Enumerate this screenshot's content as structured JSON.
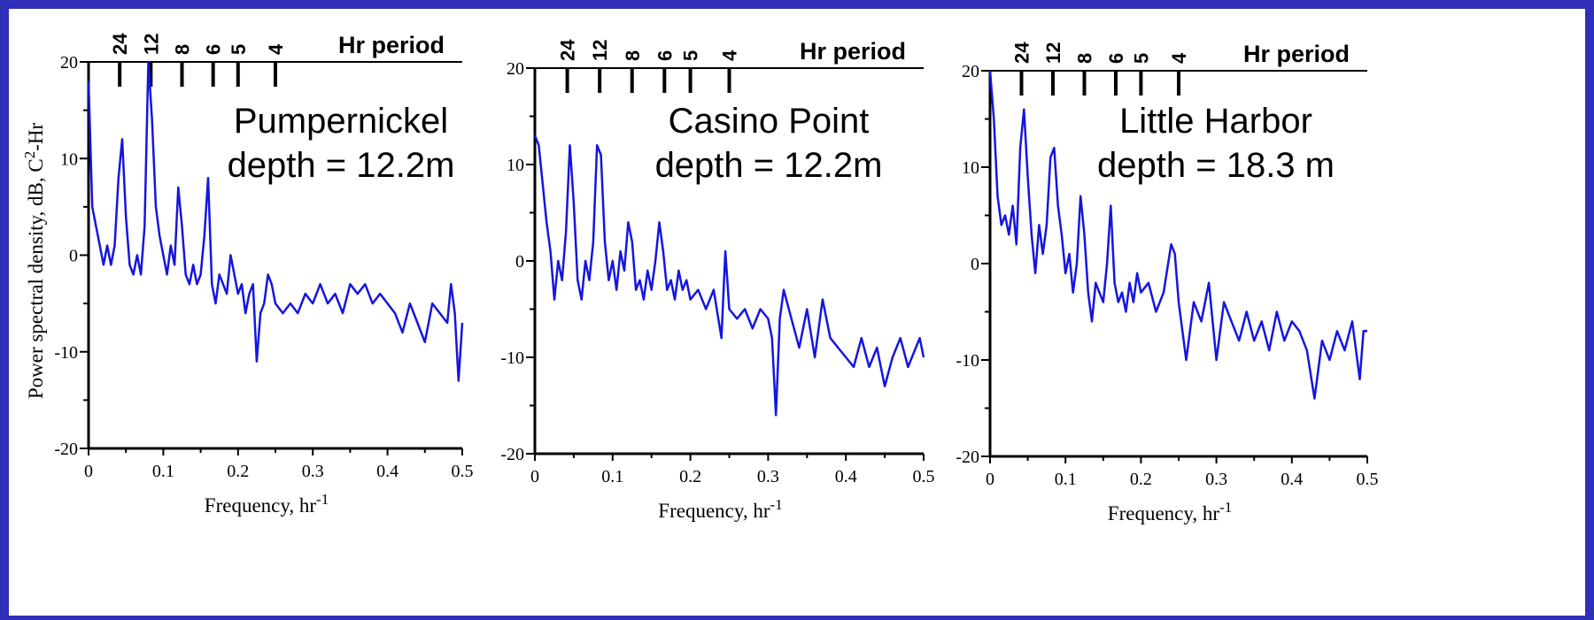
{
  "y_axis_label_main": "Power spectral density, dB, C",
  "y_axis_label_sup": "2",
  "y_axis_label_tail": "-Hr",
  "period_label": "Hr period",
  "period_ticks": [
    {
      "label": "24",
      "freq": 0.04167
    },
    {
      "label": "12",
      "freq": 0.08333
    },
    {
      "label": "8",
      "freq": 0.125
    },
    {
      "label": "6",
      "freq": 0.16667
    },
    {
      "label": "5",
      "freq": 0.2
    },
    {
      "label": "4",
      "freq": 0.25
    }
  ],
  "x_tick_labels": [
    "0",
    "0.1",
    "0.2",
    "0.3",
    "0.4",
    "0.5"
  ],
  "y_tick_labels": [
    "-20",
    "-10",
    "0",
    "10",
    "20"
  ],
  "line_color": "#1515e0",
  "chart_data": [
    {
      "type": "line",
      "title_line1": "Pumpernickel",
      "title_line2": "depth = 12.2m",
      "xlabel": "Frequency, hr",
      "xlabel_sup": "-1",
      "xlim": [
        0,
        0.5
      ],
      "ylim": [
        -20,
        20
      ],
      "x": [
        0,
        0.005,
        0.01,
        0.015,
        0.02,
        0.025,
        0.03,
        0.035,
        0.04,
        0.045,
        0.05,
        0.055,
        0.06,
        0.065,
        0.07,
        0.075,
        0.08,
        0.085,
        0.09,
        0.095,
        0.1,
        0.105,
        0.11,
        0.115,
        0.12,
        0.125,
        0.13,
        0.135,
        0.14,
        0.145,
        0.15,
        0.155,
        0.16,
        0.165,
        0.17,
        0.175,
        0.18,
        0.185,
        0.19,
        0.195,
        0.2,
        0.205,
        0.21,
        0.215,
        0.22,
        0.225,
        0.23,
        0.235,
        0.24,
        0.245,
        0.25,
        0.26,
        0.27,
        0.28,
        0.29,
        0.3,
        0.31,
        0.32,
        0.33,
        0.34,
        0.35,
        0.36,
        0.37,
        0.38,
        0.39,
        0.4,
        0.41,
        0.42,
        0.43,
        0.44,
        0.45,
        0.46,
        0.47,
        0.48,
        0.485,
        0.49,
        0.495,
        0.5
      ],
      "y": [
        18,
        5,
        3,
        1,
        -1,
        1,
        -1,
        1,
        8,
        12,
        4,
        -1,
        -2,
        0,
        -2,
        3,
        20,
        14,
        5,
        2,
        0,
        -2,
        1,
        -1,
        7,
        3,
        -2,
        -3,
        -1,
        -3,
        -2,
        2,
        8,
        -3,
        -5,
        -2,
        -3,
        -4,
        0,
        -2,
        -4,
        -3,
        -6,
        -4,
        -3,
        -11,
        -6,
        -5,
        -2,
        -3,
        -5,
        -6,
        -5,
        -6,
        -4,
        -5,
        -3,
        -5,
        -4,
        -6,
        -3,
        -4,
        -3,
        -5,
        -4,
        -5,
        -6,
        -8,
        -5,
        -7,
        -9,
        -5,
        -6,
        -7,
        -3,
        -6,
        -13,
        -7
      ]
    },
    {
      "type": "line",
      "title_line1": "Casino Point",
      "title_line2": "depth = 12.2m",
      "xlabel": "Frequency, hr",
      "xlabel_sup": "-1",
      "xlim": [
        0,
        0.5
      ],
      "ylim": [
        -20,
        20
      ],
      "x": [
        0,
        0.005,
        0.01,
        0.015,
        0.02,
        0.025,
        0.03,
        0.035,
        0.04,
        0.045,
        0.05,
        0.055,
        0.06,
        0.065,
        0.07,
        0.075,
        0.08,
        0.085,
        0.09,
        0.095,
        0.1,
        0.105,
        0.11,
        0.115,
        0.12,
        0.125,
        0.13,
        0.135,
        0.14,
        0.145,
        0.15,
        0.155,
        0.16,
        0.165,
        0.17,
        0.175,
        0.18,
        0.185,
        0.19,
        0.195,
        0.2,
        0.21,
        0.22,
        0.23,
        0.24,
        0.245,
        0.25,
        0.26,
        0.27,
        0.28,
        0.29,
        0.3,
        0.305,
        0.31,
        0.315,
        0.32,
        0.33,
        0.34,
        0.35,
        0.36,
        0.37,
        0.38,
        0.39,
        0.4,
        0.41,
        0.42,
        0.43,
        0.44,
        0.45,
        0.46,
        0.47,
        0.48,
        0.49,
        0.495,
        0.5
      ],
      "y": [
        13,
        12,
        8,
        4,
        1,
        -4,
        0,
        -2,
        3,
        12,
        6,
        -2,
        -4,
        0,
        -2,
        2,
        12,
        11,
        2,
        -2,
        0,
        -3,
        1,
        -1,
        4,
        2,
        -3,
        -2,
        -4,
        -1,
        -3,
        0,
        4,
        1,
        -3,
        -2,
        -4,
        -1,
        -3,
        -2,
        -4,
        -3,
        -5,
        -3,
        -8,
        1,
        -5,
        -6,
        -5,
        -7,
        -5,
        -6,
        -8,
        -16,
        -6,
        -3,
        -6,
        -9,
        -5,
        -10,
        -4,
        -8,
        -9,
        -10,
        -11,
        -8,
        -11,
        -9,
        -13,
        -10,
        -8,
        -11,
        -9,
        -8,
        -10
      ]
    },
    {
      "type": "line",
      "title_line1": "Little Harbor",
      "title_line2": "depth = 18.3 m",
      "xlabel": "Frequency, hr",
      "xlabel_sup": "-1",
      "xlim": [
        0,
        0.5
      ],
      "ylim": [
        -20,
        20
      ],
      "x": [
        0,
        0.005,
        0.01,
        0.015,
        0.02,
        0.025,
        0.03,
        0.035,
        0.04,
        0.045,
        0.05,
        0.055,
        0.06,
        0.065,
        0.07,
        0.075,
        0.08,
        0.085,
        0.09,
        0.095,
        0.1,
        0.105,
        0.11,
        0.115,
        0.12,
        0.125,
        0.13,
        0.135,
        0.14,
        0.145,
        0.15,
        0.155,
        0.16,
        0.165,
        0.17,
        0.175,
        0.18,
        0.185,
        0.19,
        0.195,
        0.2,
        0.21,
        0.22,
        0.23,
        0.24,
        0.245,
        0.25,
        0.26,
        0.27,
        0.28,
        0.29,
        0.3,
        0.31,
        0.32,
        0.33,
        0.34,
        0.35,
        0.36,
        0.37,
        0.38,
        0.39,
        0.4,
        0.41,
        0.42,
        0.43,
        0.44,
        0.45,
        0.46,
        0.47,
        0.48,
        0.49,
        0.495,
        0.5
      ],
      "y": [
        20,
        15,
        7,
        4,
        5,
        3,
        6,
        2,
        12,
        16,
        9,
        3,
        -1,
        4,
        1,
        4,
        11,
        12,
        6,
        3,
        -1,
        1,
        -3,
        0,
        7,
        3,
        -3,
        -6,
        -2,
        -3,
        -4,
        0,
        6,
        -2,
        -4,
        -3,
        -5,
        -2,
        -4,
        -1,
        -3,
        -2,
        -5,
        -3,
        2,
        1,
        -4,
        -10,
        -4,
        -6,
        -2,
        -10,
        -4,
        -6,
        -8,
        -5,
        -8,
        -6,
        -9,
        -5,
        -8,
        -6,
        -7,
        -9,
        -14,
        -8,
        -10,
        -7,
        -9,
        -6,
        -12,
        -7,
        -7
      ]
    }
  ]
}
